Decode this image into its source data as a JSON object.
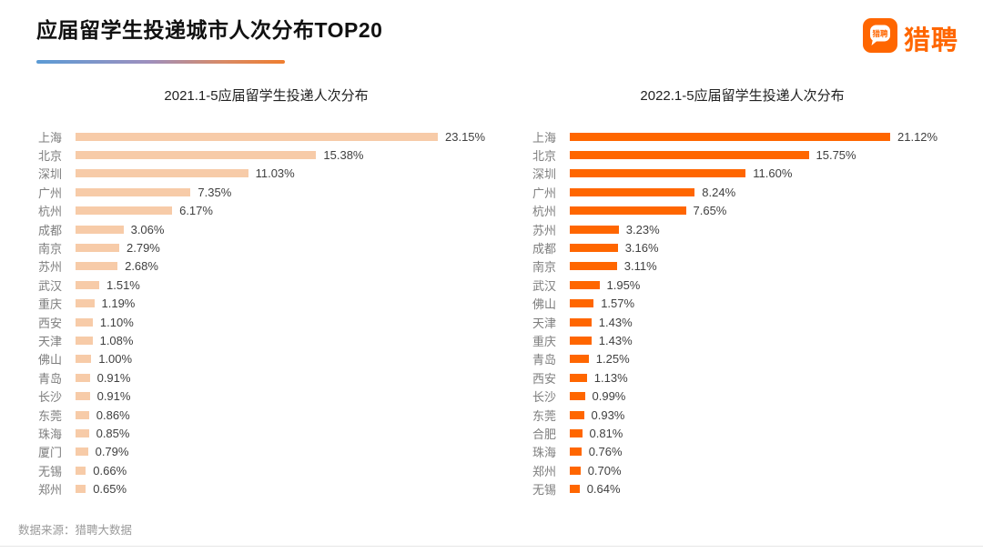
{
  "page": {
    "title": "应届留学生投递城市人次分布TOP20",
    "source_note": "数据来源：猎聘大数据"
  },
  "logo": {
    "brand_text": "猎聘",
    "bubble_text": "猎聘",
    "brand_color": "#FF6600"
  },
  "colors": {
    "left_bar": "#F7CBA8",
    "right_bar": "#FF6600",
    "city_label": "#7E7E7E",
    "value_label": "#404040",
    "underline_gradient": [
      "#5B9BD5",
      "#EF7D2E"
    ]
  },
  "chart_data": [
    {
      "type": "bar",
      "orientation": "horizontal",
      "title": "2021.1-5应届留学生投递人次分布",
      "categories": [
        "上海",
        "北京",
        "深圳",
        "广州",
        "杭州",
        "成都",
        "南京",
        "苏州",
        "武汉",
        "重庆",
        "西安",
        "天津",
        "佛山",
        "青岛",
        "长沙",
        "东莞",
        "珠海",
        "厦门",
        "无锡",
        "郑州"
      ],
      "values": [
        23.15,
        15.38,
        11.03,
        7.35,
        6.17,
        3.06,
        2.79,
        2.68,
        1.51,
        1.19,
        1.1,
        1.08,
        1.0,
        0.91,
        0.91,
        0.86,
        0.85,
        0.79,
        0.66,
        0.65
      ],
      "value_labels": [
        "23.15%",
        "15.38%",
        "11.03%",
        "7.35%",
        "6.17%",
        "3.06%",
        "2.79%",
        "2.68%",
        "1.51%",
        "1.19%",
        "1.10%",
        "1.08%",
        "1.00%",
        "0.91%",
        "0.91%",
        "0.86%",
        "0.85%",
        "0.79%",
        "0.66%",
        "0.65%"
      ],
      "bar_color": "#F7CBA8",
      "xlim": [
        0,
        23.15
      ],
      "grid": false,
      "legend": false
    },
    {
      "type": "bar",
      "orientation": "horizontal",
      "title": "2022.1-5应届留学生投递人次分布",
      "categories": [
        "上海",
        "北京",
        "深圳",
        "广州",
        "杭州",
        "苏州",
        "成都",
        "南京",
        "武汉",
        "佛山",
        "天津",
        "重庆",
        "青岛",
        "西安",
        "长沙",
        "东莞",
        "合肥",
        "珠海",
        "郑州",
        "无锡"
      ],
      "values": [
        21.12,
        15.75,
        11.6,
        8.24,
        7.65,
        3.23,
        3.16,
        3.11,
        1.95,
        1.57,
        1.43,
        1.43,
        1.25,
        1.13,
        0.99,
        0.93,
        0.81,
        0.76,
        0.7,
        0.64
      ],
      "value_labels": [
        "21.12%",
        "15.75%",
        "11.60%",
        "8.24%",
        "7.65%",
        "3.23%",
        "3.16%",
        "3.11%",
        "1.95%",
        "1.57%",
        "1.43%",
        "1.43%",
        "1.25%",
        "1.13%",
        "0.99%",
        "0.93%",
        "0.81%",
        "0.76%",
        "0.70%",
        "0.64%"
      ],
      "bar_color": "#FF6600",
      "xlim": [
        0,
        21.12
      ],
      "grid": false,
      "legend": false
    }
  ]
}
